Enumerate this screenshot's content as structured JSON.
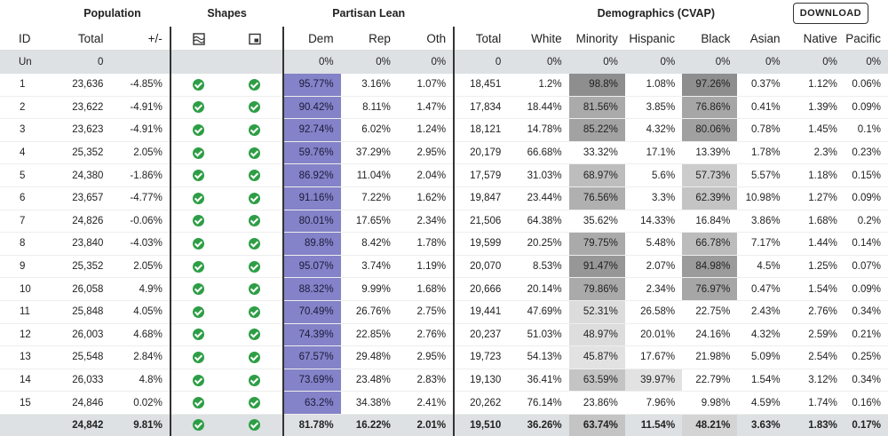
{
  "header": {
    "groups": {
      "population": "Population",
      "shapes": "Shapes",
      "partisan": "Partisan Lean",
      "demographics": "Demographics (CVAP)"
    },
    "download_label": "DOWNLOAD",
    "columns": {
      "id": "ID",
      "total": "Total",
      "deviation": "+/-",
      "shape_icon_1": "compactness-icon",
      "shape_icon_2": "contiguity-icon",
      "dem": "Dem",
      "rep": "Rep",
      "oth": "Oth",
      "cvap_total": "Total",
      "white": "White",
      "minority": "Minority",
      "hispanic": "Hispanic",
      "black": "Black",
      "asian": "Asian",
      "native": "Native",
      "pacific": "Pacific"
    }
  },
  "unassigned": {
    "id": "Un",
    "total": "0",
    "dem": "0%",
    "rep": "0%",
    "oth": "0%",
    "cvap_total": "0",
    "white": "0%",
    "minority": "0%",
    "hispanic": "0%",
    "black": "0%",
    "asian": "0%",
    "native": "0%",
    "pacific": "0%"
  },
  "rows": [
    {
      "id": "1",
      "total": "23,636",
      "dev": "-4.85%",
      "dem": "95.77%",
      "rep": "3.16%",
      "oth": "1.07%",
      "cvap": "18,451",
      "white": "1.2%",
      "minority": "98.8%",
      "hispanic": "1.08%",
      "black": "97.26%",
      "asian": "0.37%",
      "native": "1.12%",
      "pacific": "0.06%",
      "minority_shade": "#8e8e8e",
      "black_shade": "#8e8e8e"
    },
    {
      "id": "2",
      "total": "23,622",
      "dev": "-4.91%",
      "dem": "90.42%",
      "rep": "8.11%",
      "oth": "1.47%",
      "cvap": "17,834",
      "white": "18.44%",
      "minority": "81.56%",
      "hispanic": "3.85%",
      "black": "76.86%",
      "asian": "0.41%",
      "native": "1.39%",
      "pacific": "0.09%",
      "minority_shade": "#aaaaaa",
      "black_shade": "#a6a6a6"
    },
    {
      "id": "3",
      "total": "23,623",
      "dev": "-4.91%",
      "dem": "92.74%",
      "rep": "6.02%",
      "oth": "1.24%",
      "cvap": "18,121",
      "white": "14.78%",
      "minority": "85.22%",
      "hispanic": "4.32%",
      "black": "80.06%",
      "asian": "0.78%",
      "native": "1.45%",
      "pacific": "0.1%",
      "minority_shade": "#a2a2a2",
      "black_shade": "#a0a0a0"
    },
    {
      "id": "4",
      "total": "25,352",
      "dev": "2.05%",
      "dem": "59.76%",
      "rep": "37.29%",
      "oth": "2.95%",
      "cvap": "20,179",
      "white": "66.68%",
      "minority": "33.32%",
      "hispanic": "17.1%",
      "black": "13.39%",
      "asian": "1.78%",
      "native": "2.3%",
      "pacific": "0.23%",
      "minority_shade": "",
      "black_shade": ""
    },
    {
      "id": "5",
      "total": "24,380",
      "dev": "-1.86%",
      "dem": "86.92%",
      "rep": "11.04%",
      "oth": "2.04%",
      "cvap": "17,579",
      "white": "31.03%",
      "minority": "68.97%",
      "hispanic": "5.6%",
      "black": "57.73%",
      "asian": "5.57%",
      "native": "1.18%",
      "pacific": "0.15%",
      "minority_shade": "#bdbdbd",
      "black_shade": "#cccccc"
    },
    {
      "id": "6",
      "total": "23,657",
      "dev": "-4.77%",
      "dem": "91.16%",
      "rep": "7.22%",
      "oth": "1.62%",
      "cvap": "19,847",
      "white": "23.44%",
      "minority": "76.56%",
      "hispanic": "3.3%",
      "black": "62.39%",
      "asian": "10.98%",
      "native": "1.27%",
      "pacific": "0.09%",
      "minority_shade": "#b0b0b0",
      "black_shade": "#c4c4c4"
    },
    {
      "id": "7",
      "total": "24,826",
      "dev": "-0.06%",
      "dem": "80.01%",
      "rep": "17.65%",
      "oth": "2.34%",
      "cvap": "21,506",
      "white": "64.38%",
      "minority": "35.62%",
      "hispanic": "14.33%",
      "black": "16.84%",
      "asian": "3.86%",
      "native": "1.68%",
      "pacific": "0.2%",
      "minority_shade": "",
      "black_shade": ""
    },
    {
      "id": "8",
      "total": "23,840",
      "dev": "-4.03%",
      "dem": "89.8%",
      "rep": "8.42%",
      "oth": "1.78%",
      "cvap": "19,599",
      "white": "20.25%",
      "minority": "79.75%",
      "hispanic": "5.48%",
      "black": "66.78%",
      "asian": "7.17%",
      "native": "1.44%",
      "pacific": "0.14%",
      "minority_shade": "#aaaaaa",
      "black_shade": "#bcbcbc"
    },
    {
      "id": "9",
      "total": "25,352",
      "dev": "2.05%",
      "dem": "95.07%",
      "rep": "3.74%",
      "oth": "1.19%",
      "cvap": "20,070",
      "white": "8.53%",
      "minority": "91.47%",
      "hispanic": "2.07%",
      "black": "84.98%",
      "asian": "4.5%",
      "native": "1.25%",
      "pacific": "0.07%",
      "minority_shade": "#979797",
      "black_shade": "#9b9b9b"
    },
    {
      "id": "10",
      "total": "26,058",
      "dev": "4.9%",
      "dem": "88.32%",
      "rep": "9.99%",
      "oth": "1.68%",
      "cvap": "20,666",
      "white": "20.14%",
      "minority": "79.86%",
      "hispanic": "2.34%",
      "black": "76.97%",
      "asian": "0.47%",
      "native": "1.54%",
      "pacific": "0.09%",
      "minority_shade": "#aaaaaa",
      "black_shade": "#a6a6a6"
    },
    {
      "id": "11",
      "total": "25,848",
      "dev": "4.05%",
      "dem": "70.49%",
      "rep": "26.76%",
      "oth": "2.75%",
      "cvap": "19,441",
      "white": "47.69%",
      "minority": "52.31%",
      "hispanic": "26.58%",
      "black": "22.75%",
      "asian": "2.43%",
      "native": "2.76%",
      "pacific": "0.34%",
      "minority_shade": "#dcdcdc",
      "black_shade": ""
    },
    {
      "id": "12",
      "total": "26,003",
      "dev": "4.68%",
      "dem": "74.39%",
      "rep": "22.85%",
      "oth": "2.76%",
      "cvap": "20,237",
      "white": "51.03%",
      "minority": "48.97%",
      "hispanic": "20.01%",
      "black": "24.16%",
      "asian": "4.32%",
      "native": "2.59%",
      "pacific": "0.21%",
      "minority_shade": "#dddddd",
      "black_shade": ""
    },
    {
      "id": "13",
      "total": "25,548",
      "dev": "2.84%",
      "dem": "67.57%",
      "rep": "29.48%",
      "oth": "2.95%",
      "cvap": "19,723",
      "white": "54.13%",
      "minority": "45.87%",
      "hispanic": "17.67%",
      "black": "21.98%",
      "asian": "5.09%",
      "native": "2.54%",
      "pacific": "0.25%",
      "minority_shade": "#e2e2e2",
      "black_shade": ""
    },
    {
      "id": "14",
      "total": "26,033",
      "dev": "4.8%",
      "dem": "73.69%",
      "rep": "23.48%",
      "oth": "2.83%",
      "cvap": "19,130",
      "white": "36.41%",
      "minority": "63.59%",
      "hispanic": "39.97%",
      "black": "22.79%",
      "asian": "1.54%",
      "native": "3.12%",
      "pacific": "0.34%",
      "minority_shade": "#c4c4c4",
      "black_shade": "",
      "hispanic_shade": "#e2e2e2"
    },
    {
      "id": "15",
      "total": "24,846",
      "dev": "0.02%",
      "dem": "63.2%",
      "rep": "34.38%",
      "oth": "2.41%",
      "cvap": "20,262",
      "white": "76.14%",
      "minority": "23.86%",
      "hispanic": "7.96%",
      "black": "9.98%",
      "asian": "4.59%",
      "native": "1.74%",
      "pacific": "0.16%",
      "minority_shade": "",
      "black_shade": ""
    }
  ],
  "totals": {
    "total": "24,842",
    "dev": "9.81%",
    "dem": "81.78%",
    "rep": "16.22%",
    "oth": "2.01%",
    "cvap": "19,510",
    "white": "36.26%",
    "minority": "63.74%",
    "hispanic": "11.54%",
    "black": "48.21%",
    "asian": "3.63%",
    "native": "1.83%",
    "pacific": "0.17%",
    "minority_shade": "#c4c4c4",
    "black_shade": "#d4d4d4"
  },
  "colors": {
    "dem_fill": "#8482c8",
    "check_green": "#2e9e46",
    "summary_bg": "#dde1e3"
  }
}
